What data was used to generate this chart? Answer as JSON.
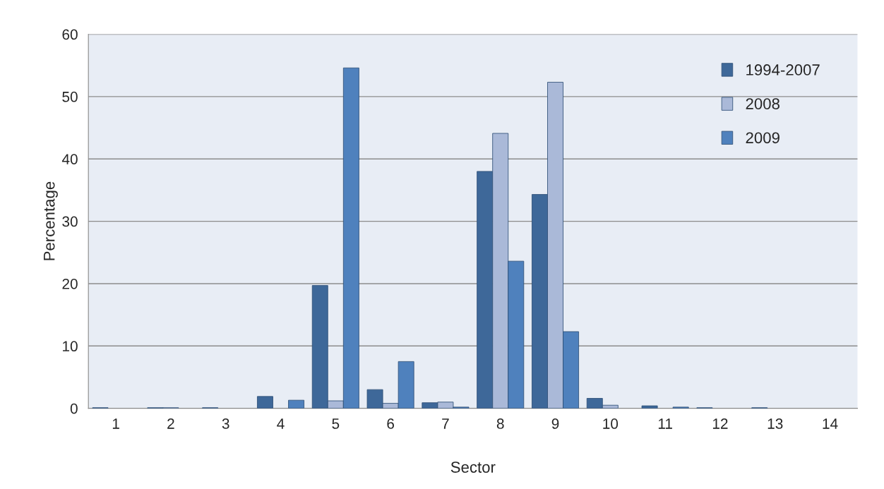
{
  "chart_data": {
    "type": "bar",
    "xlabel": "Sector",
    "ylabel": "Percentage",
    "categories": [
      "1",
      "2",
      "3",
      "4",
      "5",
      "6",
      "7",
      "8",
      "9",
      "10",
      "11",
      "12",
      "13",
      "14"
    ],
    "series": [
      {
        "name": "1994-2007",
        "color": "#3e6899",
        "values": [
          0.1,
          0.1,
          0.1,
          1.9,
          19.7,
          3.0,
          0.9,
          38.0,
          34.3,
          1.6,
          0.4,
          0.1,
          0.1,
          0
        ]
      },
      {
        "name": "2008",
        "color": "#aab9d8",
        "values": [
          0,
          0.1,
          0,
          0,
          1.2,
          0.8,
          1.0,
          44.1,
          52.3,
          0.5,
          0,
          0,
          0,
          0
        ]
      },
      {
        "name": "2009",
        "color": "#4f81bd",
        "values": [
          0,
          0,
          0,
          1.3,
          54.6,
          7.5,
          0.2,
          23.6,
          12.3,
          0,
          0.2,
          0,
          0,
          0
        ]
      }
    ],
    "ylim": [
      0,
      60
    ],
    "yticks": [
      0,
      10,
      20,
      30,
      40,
      50,
      60
    ],
    "grid": "y",
    "legend": "top right"
  }
}
